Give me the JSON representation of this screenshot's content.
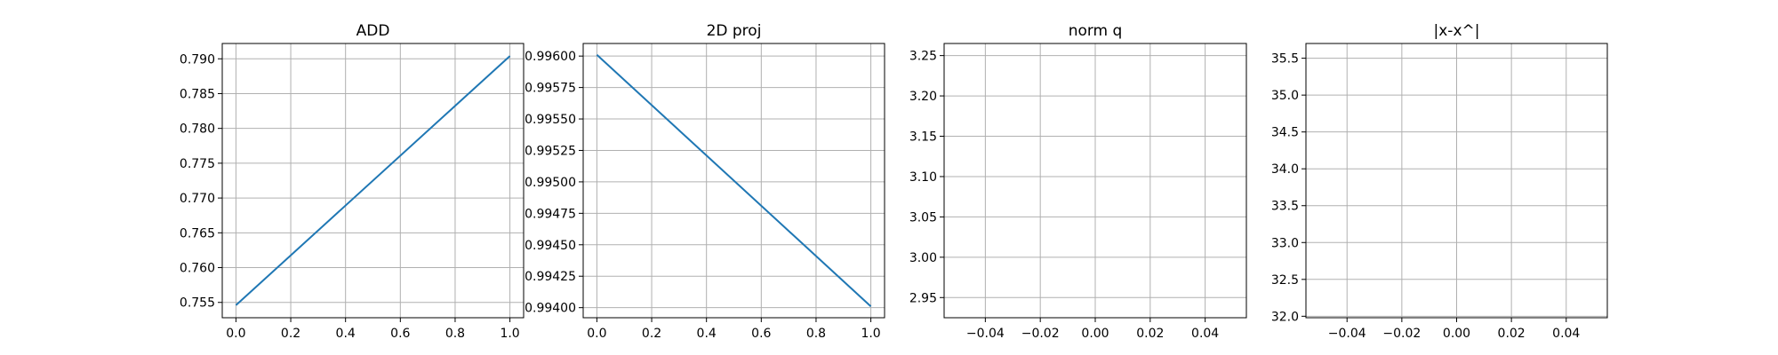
{
  "chart_data": [
    {
      "type": "line",
      "title": "ADD",
      "xlabel": "",
      "ylabel": "",
      "grid": true,
      "xlim": [
        -0.05,
        1.05
      ],
      "ylim": [
        0.7528,
        0.7922
      ],
      "xticks": [
        0.0,
        0.2,
        0.4,
        0.6,
        0.8,
        1.0
      ],
      "xtick_labels": [
        "0.0",
        "0.2",
        "0.4",
        "0.6",
        "0.8",
        "1.0"
      ],
      "yticks": [
        0.755,
        0.76,
        0.765,
        0.77,
        0.775,
        0.78,
        0.785,
        0.79
      ],
      "ytick_labels": [
        "0.755",
        "0.760",
        "0.765",
        "0.770",
        "0.775",
        "0.780",
        "0.785",
        "0.790"
      ],
      "series": [
        {
          "color": "#1f77b4",
          "x": [
            0,
            1
          ],
          "y": [
            0.7546,
            0.7904
          ]
        }
      ]
    },
    {
      "type": "line",
      "title": "2D proj",
      "xlabel": "",
      "ylabel": "",
      "grid": true,
      "xlim": [
        -0.05,
        1.05
      ],
      "ylim": [
        0.99392,
        0.9961
      ],
      "xticks": [
        0.0,
        0.2,
        0.4,
        0.6,
        0.8,
        1.0
      ],
      "xtick_labels": [
        "0.0",
        "0.2",
        "0.4",
        "0.6",
        "0.8",
        "1.0"
      ],
      "yticks": [
        0.994,
        0.99425,
        0.9945,
        0.99475,
        0.995,
        0.99525,
        0.9955,
        0.99575,
        0.996
      ],
      "ytick_labels": [
        "0.99400",
        "0.99425",
        "0.99450",
        "0.99475",
        "0.99500",
        "0.99525",
        "0.99550",
        "0.99575",
        "0.99600"
      ],
      "series": [
        {
          "color": "#1f77b4",
          "x": [
            0,
            1
          ],
          "y": [
            0.99601,
            0.99401
          ]
        }
      ]
    },
    {
      "type": "line",
      "title": "norm q",
      "xlabel": "",
      "ylabel": "",
      "grid": true,
      "xlim": [
        -0.055,
        0.055
      ],
      "ylim": [
        2.925,
        3.265
      ],
      "xticks": [
        -0.04,
        -0.02,
        0.0,
        0.02,
        0.04
      ],
      "xtick_labels": [
        "−0.04",
        "−0.02",
        "0.00",
        "0.02",
        "0.04"
      ],
      "yticks": [
        2.95,
        3.0,
        3.05,
        3.1,
        3.15,
        3.2,
        3.25
      ],
      "ytick_labels": [
        "2.95",
        "3.00",
        "3.05",
        "3.10",
        "3.15",
        "3.20",
        "3.25"
      ],
      "series": []
    },
    {
      "type": "line",
      "title": "|x-x^|",
      "xlabel": "",
      "ylabel": "",
      "grid": true,
      "xlim": [
        -0.055,
        0.055
      ],
      "ylim": [
        31.98,
        35.7
      ],
      "xticks": [
        -0.04,
        -0.02,
        0.0,
        0.02,
        0.04
      ],
      "xtick_labels": [
        "−0.04",
        "−0.02",
        "0.00",
        "0.02",
        "0.04"
      ],
      "yticks": [
        32.0,
        32.5,
        33.0,
        33.5,
        34.0,
        34.5,
        35.0,
        35.5
      ],
      "ytick_labels": [
        "32.0",
        "32.5",
        "33.0",
        "33.5",
        "34.0",
        "34.5",
        "35.0",
        "35.5"
      ],
      "series": []
    }
  ]
}
